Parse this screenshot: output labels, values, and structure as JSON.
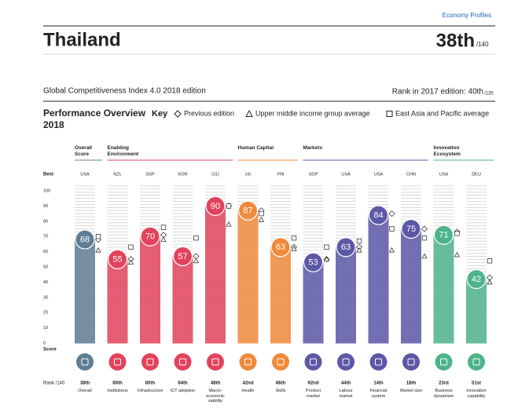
{
  "header": {
    "section": "Economy Profiles",
    "country": "Thailand",
    "rank": "38th",
    "rank_of": "/140",
    "edition": "Global Competitiveness Index 4.0 2018 edition",
    "prev_rank": "Rank in 2017 edition: 40th",
    "prev_rank_of": "/135"
  },
  "chart_data": {
    "type": "bar",
    "title": "Performance Overview 2018",
    "key_label": "Key",
    "best_label": "Best",
    "score_label": "Score",
    "rank_label": "Rank /140",
    "groups": [
      {
        "name": "Overall Score",
        "count": 1,
        "color": "#5f7d93"
      },
      {
        "name": "Enabling Environment",
        "count": 4,
        "color": "#e2435c"
      },
      {
        "name": "Human Capital",
        "count": 2,
        "color": "#ef8a3c"
      },
      {
        "name": "Markets",
        "count": 4,
        "color": "#5b58a6"
      },
      {
        "name": "Innovation Ecosystem",
        "count": 2,
        "color": "#4db38b"
      }
    ],
    "categories": [
      "Overall",
      "Institutions",
      "Infrastructure",
      "ICT adoption",
      "Macro-economic stability",
      "Health",
      "Skills",
      "Product market",
      "Labour market",
      "Financial system",
      "Market size",
      "Business dynamism",
      "Innovation capability"
    ],
    "best": [
      "USA",
      "NZL",
      "SGP",
      "KOR",
      "(31)",
      "(4)",
      "FIN",
      "SGP",
      "USA",
      "USA",
      "CHN",
      "USA",
      "DEU"
    ],
    "ranks": [
      "38th",
      "60th",
      "60th",
      "64th",
      "48th",
      "42nd",
      "66th",
      "92nd",
      "44th",
      "14th",
      "18th",
      "23rd",
      "51st"
    ],
    "series": [
      {
        "name": "Score",
        "values": [
          68,
          55,
          70,
          57,
          90,
          87,
          63,
          53,
          63,
          84,
          75,
          71,
          42
        ]
      },
      {
        "name": "Previous edition",
        "marker": "diamond",
        "values": [
          68,
          55,
          71,
          57,
          90,
          87,
          63,
          55,
          63,
          85,
          75,
          73,
          43
        ]
      },
      {
        "name": "Upper middle income group average",
        "marker": "triangle",
        "values": [
          61,
          53,
          68,
          54,
          78,
          81,
          62,
          55,
          61,
          61,
          57,
          58,
          40
        ]
      },
      {
        "name": "East Asia and Pacific average",
        "marker": "square",
        "values": [
          70,
          63,
          76,
          69,
          90,
          85,
          69,
          63,
          67,
          75,
          69,
          72,
          54
        ]
      }
    ],
    "ylim": [
      0,
      100
    ],
    "yticks": [
      0,
      10,
      20,
      30,
      40,
      50,
      60,
      70,
      80,
      90,
      100
    ]
  }
}
